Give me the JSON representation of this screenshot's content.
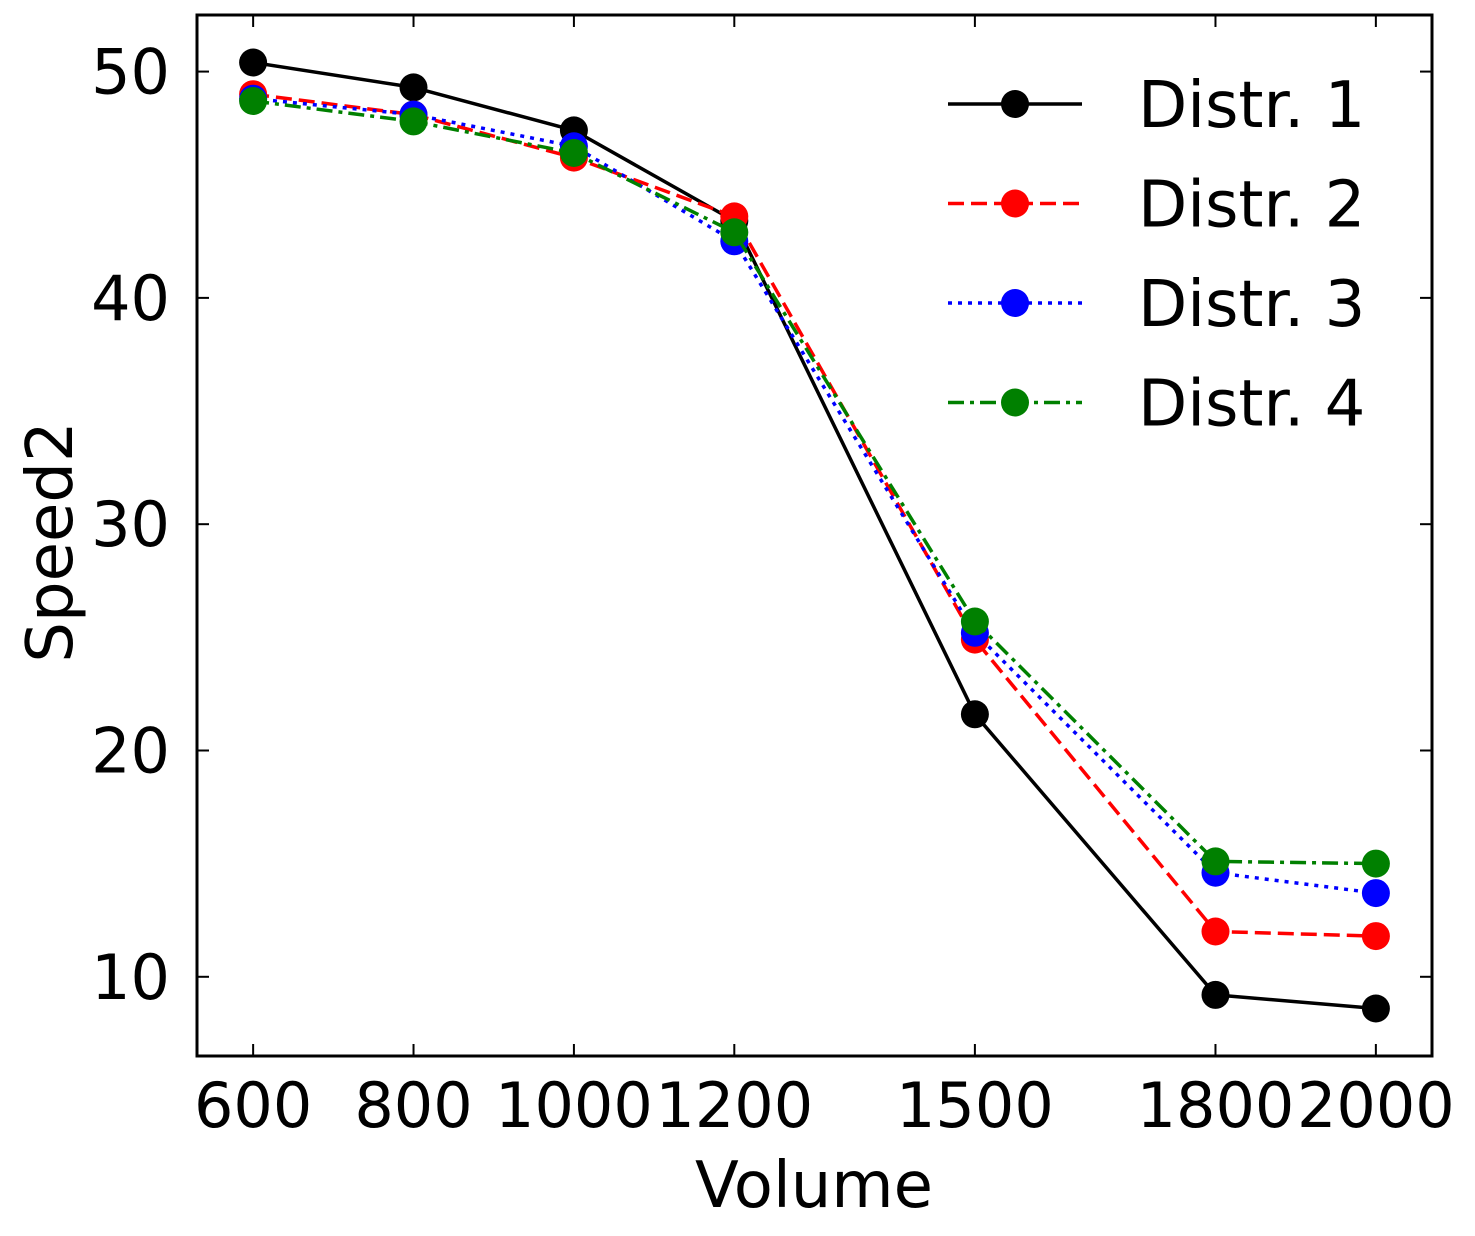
{
  "chart_data": {
    "type": "line",
    "title": "",
    "xlabel": "Volume",
    "ylabel": "Speed2",
    "x": [
      600,
      800,
      1000,
      1200,
      1500,
      1800,
      2000
    ],
    "x_ticks": [
      600,
      800,
      1000,
      1200,
      1500,
      1800,
      2000
    ],
    "y_ticks": [
      10,
      20,
      30,
      40,
      50
    ],
    "xlim": [
      530,
      2070
    ],
    "ylim": [
      6.5,
      52.5
    ],
    "grid": false,
    "legend_position": "top-right",
    "series": [
      {
        "name": "Distr. 1",
        "color": "#000000",
        "line_style": "solid",
        "values": [
          50.4,
          49.3,
          47.4,
          43.4,
          21.6,
          9.2,
          8.6
        ]
      },
      {
        "name": "Distr. 2",
        "color": "#ff0000",
        "line_style": "dashed",
        "values": [
          49.0,
          48.1,
          46.2,
          43.6,
          24.9,
          12.0,
          11.8
        ]
      },
      {
        "name": "Distr. 3",
        "color": "#0000ff",
        "line_style": "dotted",
        "values": [
          48.8,
          48.1,
          46.7,
          42.5,
          25.2,
          14.6,
          13.7
        ]
      },
      {
        "name": "Distr. 4",
        "color": "#008000",
        "line_style": "dashdot",
        "values": [
          48.7,
          47.8,
          46.4,
          42.9,
          25.7,
          15.1,
          15.0
        ]
      }
    ]
  }
}
